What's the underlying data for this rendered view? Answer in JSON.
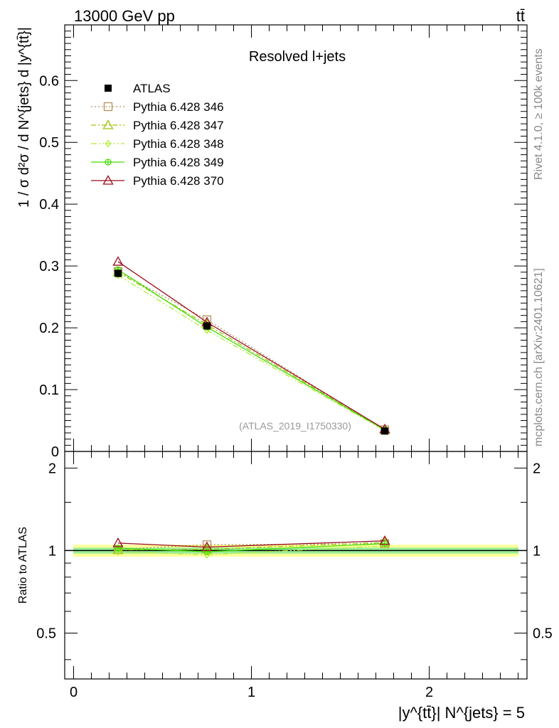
{
  "header": {
    "left": "13000 GeV pp",
    "right": "tt̄"
  },
  "side_labels": {
    "rivet": "Rivet 4.1.0, ≥ 100k events",
    "mcplots": "mcplots.cern.ch [arXiv:2401.10621]"
  },
  "chart_data": {
    "type": "line",
    "title": "Resolved l+jets",
    "watermark": "(ATLAS_2019_I1750330)",
    "xlabel": "|y^{tt̄}| N^{jets} = 5",
    "ylabel": "1 / σ d²σ / d N^{jets} d |y^{tt̄}|",
    "ratio_ylabel": "Ratio to ATLAS",
    "x": [
      0.25,
      0.75,
      1.75
    ],
    "xlim": [
      -0.05,
      2.55
    ],
    "ylim": [
      0,
      0.69
    ],
    "ratio_ylim": [
      0.34,
      2.3
    ],
    "x_ticks": [
      "0",
      "1",
      "2"
    ],
    "y_ticks": [
      "0.1",
      "0.2",
      "0.3",
      "0.4",
      "0.5",
      "0.6"
    ],
    "y_zero_tick": "0",
    "ratio_ticks": [
      "0.5",
      "1",
      "2"
    ],
    "data": {
      "name": "ATLAS",
      "values": [
        0.288,
        0.203,
        0.033
      ],
      "errors": [
        0.006,
        0.005,
        0.002
      ],
      "ratio_band_inner": [
        0.975,
        1.025
      ],
      "ratio_band_outer": [
        0.95,
        1.05
      ]
    },
    "series": [
      {
        "name": "Pythia 6.428 346",
        "color": "#b5915b",
        "dash": "2,3",
        "marker": "square",
        "values": [
          0.291,
          0.213,
          0.035
        ],
        "ratio": [
          1.01,
          1.05,
          1.06
        ]
      },
      {
        "name": "Pythia 6.428 347",
        "color": "#9ac80a",
        "dash": "7,3,2,3",
        "marker": "triangle",
        "values": [
          0.29,
          0.205,
          0.035
        ],
        "ratio": [
          1.005,
          1.01,
          1.07
        ]
      },
      {
        "name": "Pythia 6.428 348",
        "color": "#b3ea3c",
        "dash": "8,3,2,3,2,3",
        "marker": "diamond",
        "values": [
          0.285,
          0.196,
          0.034
        ],
        "ratio": [
          0.99,
          0.965,
          1.04
        ]
      },
      {
        "name": "Pythia 6.428 349",
        "color": "#44dd00",
        "dash": "",
        "marker": "circle-cross",
        "values": [
          0.294,
          0.201,
          0.035
        ],
        "ratio": [
          1.02,
          0.99,
          1.06
        ]
      },
      {
        "name": "Pythia 6.428 370",
        "color": "#990e1e",
        "dash": "",
        "marker": "triangle",
        "values": [
          0.307,
          0.209,
          0.036
        ],
        "ratio": [
          1.065,
          1.03,
          1.085
        ]
      }
    ]
  }
}
